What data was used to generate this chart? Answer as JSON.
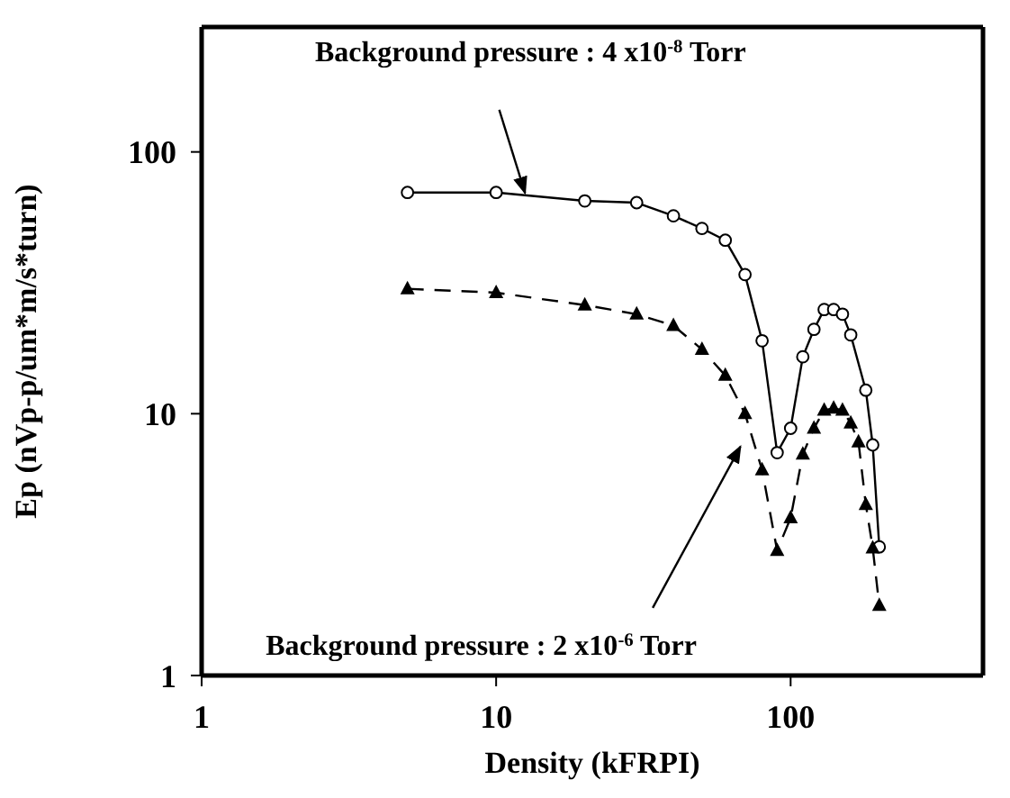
{
  "chart_data": {
    "type": "line",
    "xlabel": "Density (kFRPI)",
    "ylabel": "Ep (nVp-p/um*m/s*turn)",
    "log": "xy",
    "xlim": [
      1,
      450
    ],
    "xticks": [
      1,
      10,
      100
    ],
    "ylim": [
      1,
      300
    ],
    "yticks": [
      1,
      10,
      100
    ],
    "series": [
      {
        "color": "#000000",
        "marker": "circle",
        "line_style": "solid",
        "x": [
          5,
          10,
          20,
          30,
          40,
          50,
          60,
          70,
          80,
          90,
          100,
          110,
          120,
          130,
          140,
          150,
          160,
          180,
          190,
          200
        ],
        "values": [
          70,
          70,
          65,
          64,
          57,
          51,
          46,
          34,
          19,
          7.1,
          8.8,
          16.5,
          21,
          25,
          25,
          24,
          20,
          12.3,
          7.6,
          3.1
        ]
      },
      {
        "color": "#000000",
        "marker": "triangle",
        "line_style": "dashed",
        "x": [
          5,
          10,
          20,
          30,
          40,
          50,
          60,
          70,
          80,
          90,
          100,
          110,
          120,
          130,
          140,
          150,
          160,
          170,
          180,
          190,
          200
        ],
        "values": [
          30,
          29,
          26,
          24,
          21.7,
          17.6,
          14,
          10,
          6.1,
          3,
          4,
          7,
          8.8,
          10.3,
          10.5,
          10.3,
          9.2,
          7.8,
          4.5,
          3.07,
          1.85
        ]
      }
    ],
    "annotations": [
      "Background pressure : 4 x10$^{-8}$ Torr",
      "Background pressure : 2 x10$^{-6}$ Torr"
    ]
  }
}
